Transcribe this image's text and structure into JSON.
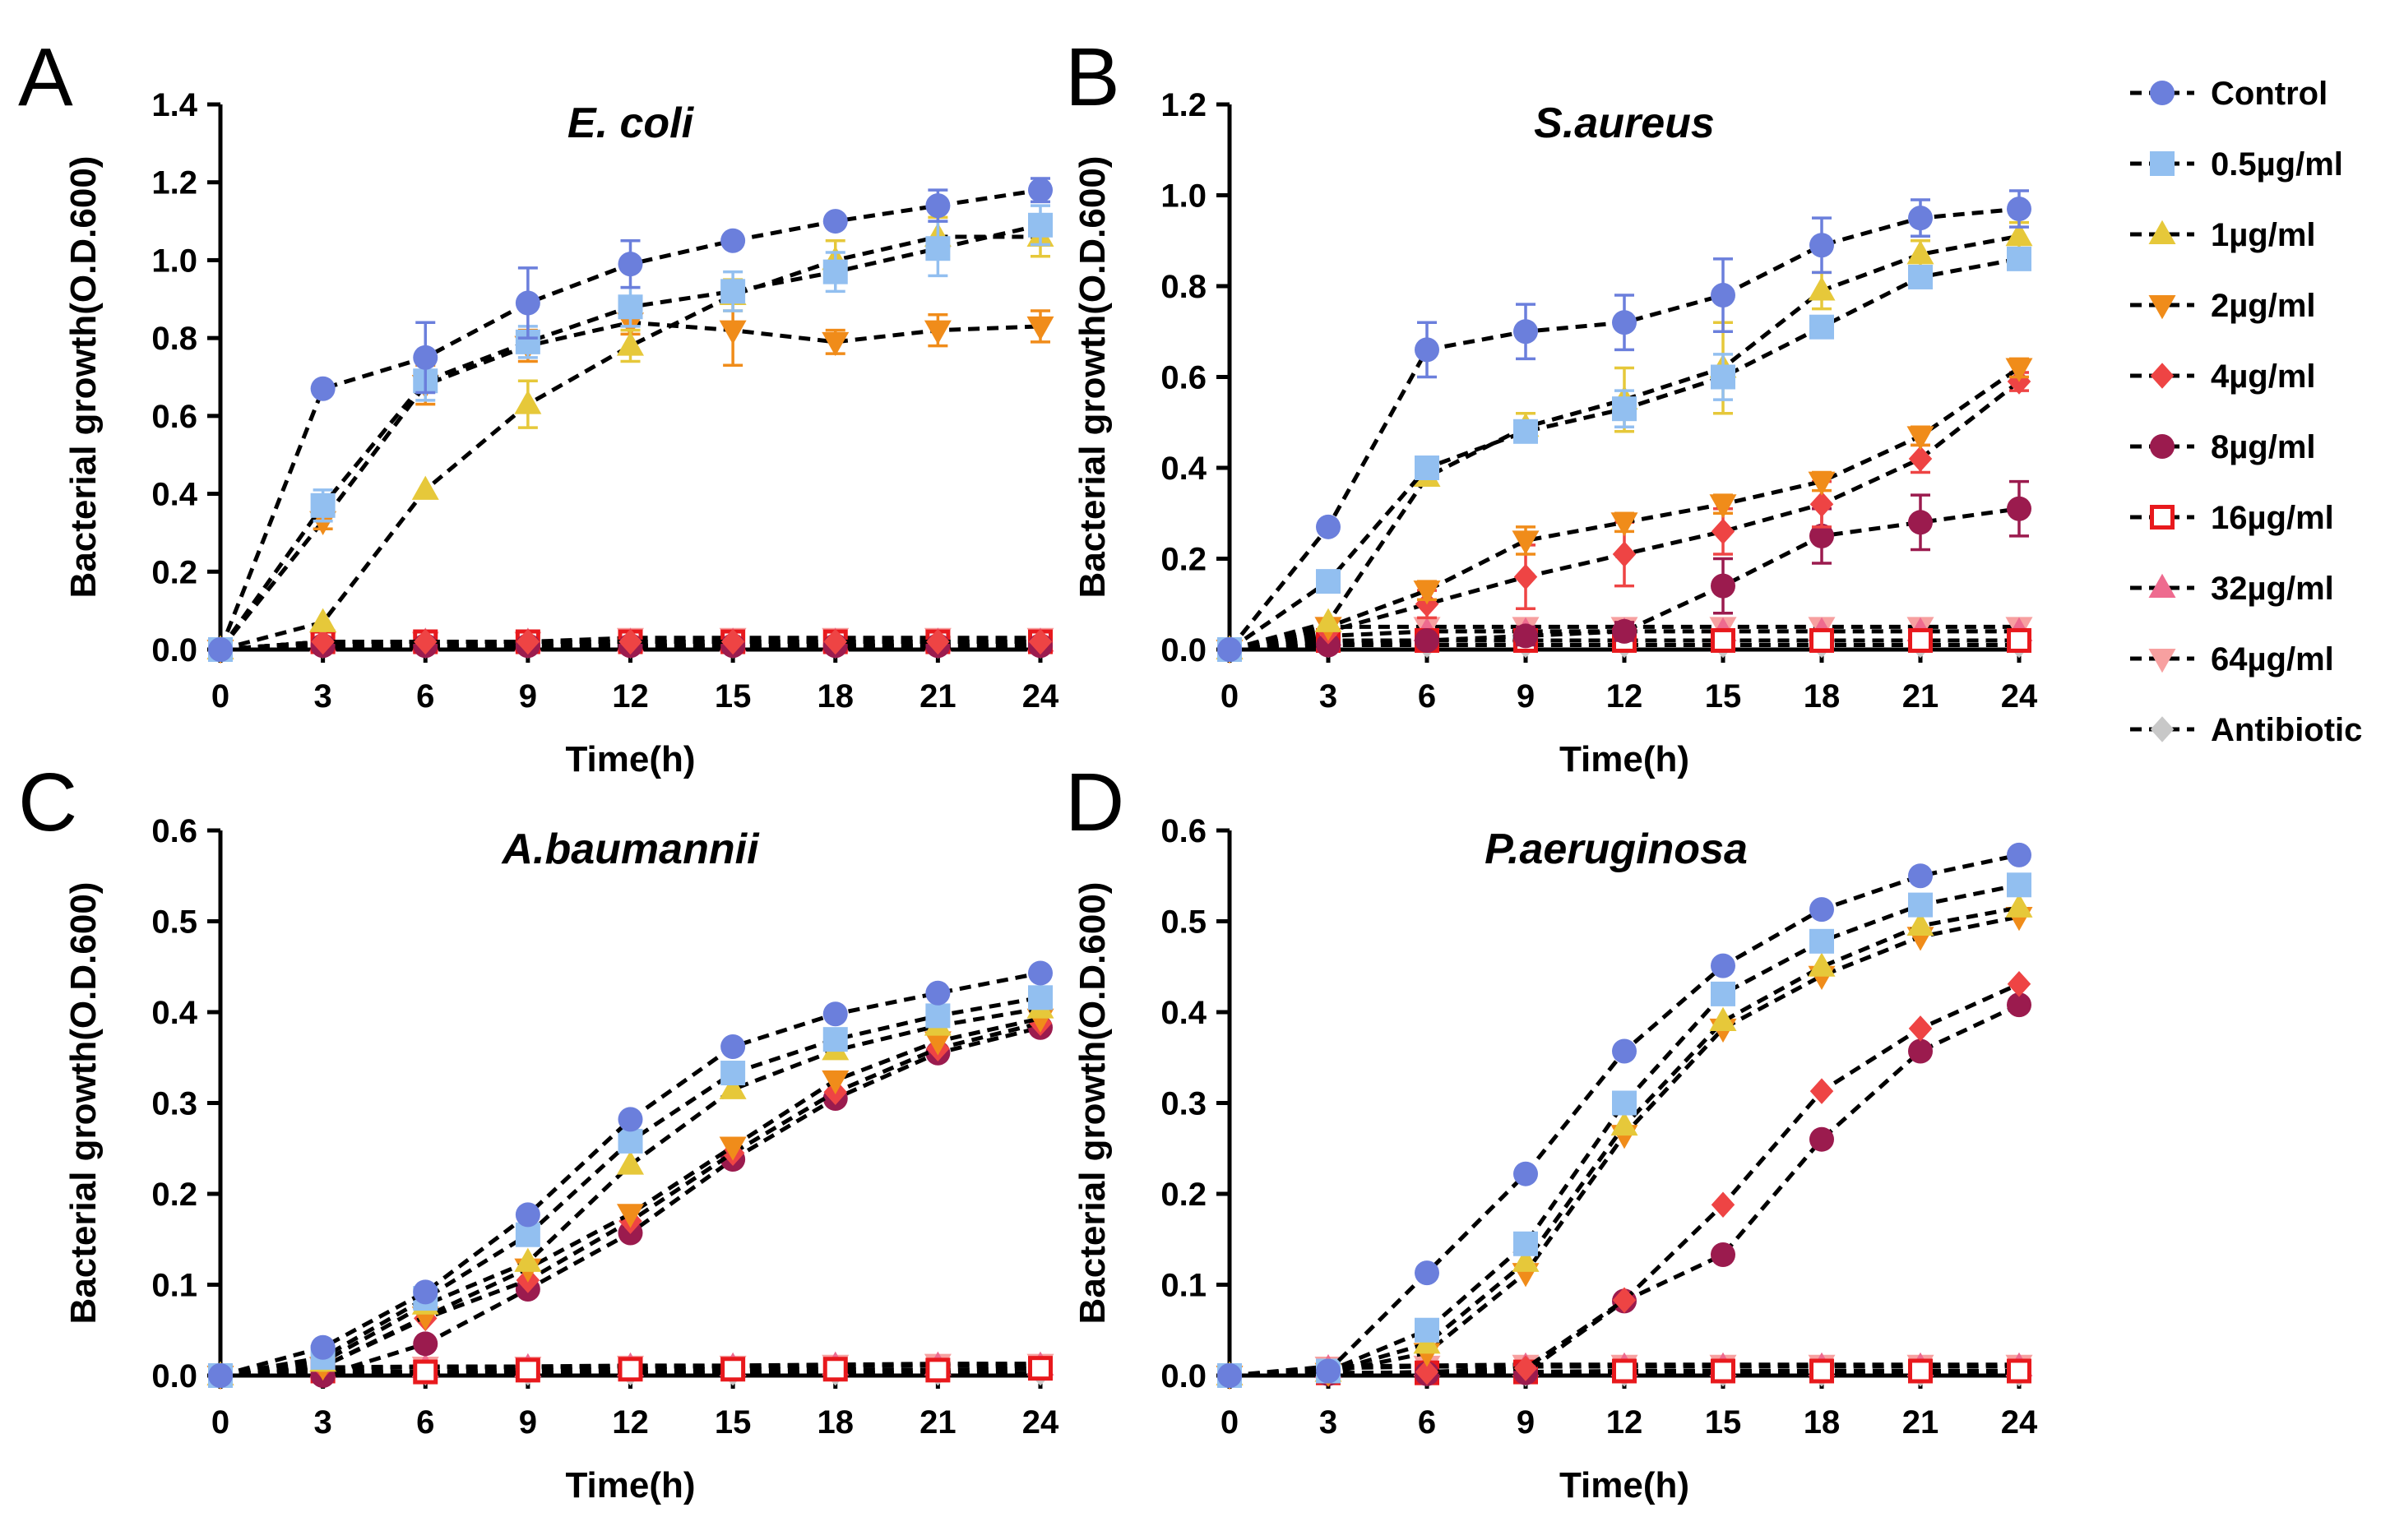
{
  "legend": {
    "entries": [
      {
        "name": "Control",
        "color": "#6b7fdc",
        "marker": "circle"
      },
      {
        "name": "0.5µg/ml",
        "color": "#92bff0",
        "marker": "square"
      },
      {
        "name": "1µg/ml",
        "color": "#e6c83a",
        "marker": "triangle"
      },
      {
        "name": "2µg/ml",
        "color": "#f08c1a",
        "marker": "triangle-down"
      },
      {
        "name": "4µg/ml",
        "color": "#ee4444",
        "marker": "diamond"
      },
      {
        "name": "8µg/ml",
        "color": "#9b1b4e",
        "marker": "circle"
      },
      {
        "name": "16µg/ml",
        "color": "#e8191d",
        "marker": "square-open"
      },
      {
        "name": "32µg/ml",
        "color": "#ee6b8f",
        "marker": "triangle"
      },
      {
        "name": "64µg/ml",
        "color": "#f7a0a0",
        "marker": "triangle-down"
      },
      {
        "name": "Antibiotic",
        "color": "#c8c8c8",
        "marker": "diamond"
      }
    ]
  },
  "chart_data": [
    {
      "panel": "A",
      "type": "line",
      "title": "E. coli",
      "xlabel": "Time(h)",
      "ylabel": "Bacterial growth(O.D.600)",
      "ylim": [
        0,
        1.4
      ],
      "yticks": [
        "0.0",
        "0.2",
        "0.4",
        "0.6",
        "0.8",
        "1.0",
        "1.2",
        "1.4"
      ],
      "x": [
        0,
        3,
        6,
        9,
        12,
        15,
        18,
        21,
        24
      ],
      "series": [
        {
          "name": "Control",
          "values": [
            0,
            0.67,
            0.75,
            0.89,
            0.99,
            1.05,
            1.1,
            1.14,
            1.18
          ],
          "err": [
            0,
            0,
            0.09,
            0.09,
            0.06,
            0,
            0,
            0.04,
            0.03
          ]
        },
        {
          "name": "0.5µg/ml",
          "values": [
            0,
            0.37,
            0.69,
            0.79,
            0.88,
            0.92,
            0.97,
            1.03,
            1.09
          ],
          "err": [
            0,
            0.04,
            0.05,
            0.04,
            0.05,
            0.05,
            0.05,
            0.07,
            0.05
          ]
        },
        {
          "name": "1µg/ml",
          "values": [
            0,
            0.07,
            0.41,
            0.63,
            0.78,
            0.91,
            1.0,
            1.06,
            1.06
          ],
          "err": [
            0,
            0,
            0,
            0.06,
            0.04,
            0.04,
            0.05,
            0.05,
            0.05
          ]
        },
        {
          "name": "2µg/ml",
          "values": [
            0,
            0.33,
            0.68,
            0.78,
            0.84,
            0.82,
            0.79,
            0.82,
            0.83
          ],
          "err": [
            0,
            0.02,
            0.05,
            0.04,
            0.03,
            0.09,
            0.03,
            0.04,
            0.04
          ]
        },
        {
          "name": "4µg/ml",
          "values": [
            0,
            0.02,
            0.02,
            0.02,
            0.02,
            0.02,
            0.02,
            0.02,
            0.02
          ]
        },
        {
          "name": "8µg/ml",
          "values": [
            0,
            0.01,
            0.01,
            0.01,
            0.01,
            0.01,
            0.01,
            0.01,
            0.01
          ]
        },
        {
          "name": "16µg/ml",
          "values": [
            0,
            0.02,
            0.02,
            0.02,
            0.02,
            0.02,
            0.02,
            0.02,
            0.02
          ]
        },
        {
          "name": "32µg/ml",
          "values": [
            0,
            0.02,
            0.02,
            0.02,
            0.02,
            0.02,
            0.02,
            0.02,
            0.02
          ]
        },
        {
          "name": "64µg/ml",
          "values": [
            0,
            0.02,
            0.02,
            0.02,
            0.03,
            0.03,
            0.03,
            0.03,
            0.03
          ]
        },
        {
          "name": "Antibiotic",
          "values": [
            0,
            0.01,
            0.01,
            0.01,
            0.01,
            0.01,
            0.01,
            0.01,
            0.01
          ]
        }
      ]
    },
    {
      "panel": "B",
      "type": "line",
      "title": "S.aureus",
      "xlabel": "Time(h)",
      "ylabel": "Bacterial growth(O.D.600)",
      "ylim": [
        0,
        1.2
      ],
      "yticks": [
        "0.0",
        "0.2",
        "0.4",
        "0.6",
        "0.8",
        "1.0",
        "1.2"
      ],
      "x": [
        0,
        3,
        6,
        9,
        12,
        15,
        18,
        21,
        24
      ],
      "series": [
        {
          "name": "Control",
          "values": [
            0,
            0.27,
            0.66,
            0.7,
            0.72,
            0.78,
            0.89,
            0.95,
            0.97
          ],
          "err": [
            0,
            0,
            0.06,
            0.06,
            0.06,
            0.08,
            0.06,
            0.04,
            0.04
          ]
        },
        {
          "name": "0.5µg/ml",
          "values": [
            0,
            0.15,
            0.4,
            0.48,
            0.53,
            0.6,
            0.71,
            0.82,
            0.86
          ],
          "err": [
            0,
            0,
            0,
            0.02,
            0.04,
            0.05,
            0.02,
            0.02,
            0.02
          ]
        },
        {
          "name": "1µg/ml",
          "values": [
            0,
            0.06,
            0.38,
            0.49,
            0.55,
            0.62,
            0.79,
            0.87,
            0.91
          ],
          "err": [
            0,
            0,
            0,
            0.03,
            0.07,
            0.1,
            0.04,
            0.03,
            0.03
          ]
        },
        {
          "name": "2µg/ml",
          "values": [
            0,
            0.05,
            0.13,
            0.24,
            0.28,
            0.32,
            0.37,
            0.47,
            0.62
          ],
          "err": [
            0,
            0,
            0.02,
            0.03,
            0.02,
            0.02,
            0.02,
            0.02,
            0.02
          ]
        },
        {
          "name": "4µg/ml",
          "values": [
            0,
            0.04,
            0.1,
            0.16,
            0.21,
            0.26,
            0.32,
            0.42,
            0.59
          ],
          "err": [
            0,
            0,
            0.03,
            0.07,
            0.07,
            0.05,
            0.05,
            0.03,
            0.02
          ]
        },
        {
          "name": "8µg/ml",
          "values": [
            0,
            0.01,
            0.02,
            0.03,
            0.04,
            0.14,
            0.25,
            0.28,
            0.31
          ],
          "err": [
            0,
            0,
            0,
            0.02,
            0.02,
            0.06,
            0.06,
            0.06,
            0.06
          ]
        },
        {
          "name": "16µg/ml",
          "values": [
            0,
            0.02,
            0.02,
            0.02,
            0.02,
            0.02,
            0.02,
            0.02,
            0.02
          ]
        },
        {
          "name": "32µg/ml",
          "values": [
            0,
            0.03,
            0.04,
            0.04,
            0.04,
            0.04,
            0.04,
            0.04,
            0.04
          ]
        },
        {
          "name": "64µg/ml",
          "values": [
            0,
            0.05,
            0.05,
            0.05,
            0.05,
            0.05,
            0.05,
            0.05,
            0.05
          ]
        },
        {
          "name": "Antibiotic",
          "values": [
            0,
            0.01,
            0.01,
            0.01,
            0.01,
            0.01,
            0.01,
            0.01,
            0.01
          ]
        }
      ]
    },
    {
      "panel": "C",
      "type": "line",
      "title": "A.baumannii",
      "xlabel": "Time(h)",
      "ylabel": "Bacterial growth(O.D.600)",
      "ylim": [
        0,
        0.6
      ],
      "yticks": [
        "0.0",
        "0.1",
        "0.2",
        "0.3",
        "0.4",
        "0.5",
        "0.6"
      ],
      "x": [
        0,
        3,
        6,
        9,
        12,
        15,
        18,
        21,
        24
      ],
      "series": [
        {
          "name": "Control",
          "values": [
            0,
            0.031,
            0.092,
            0.177,
            0.282,
            0.362,
            0.398,
            0.421,
            0.443
          ]
        },
        {
          "name": "0.5µg/ml",
          "values": [
            0,
            0.02,
            0.085,
            0.155,
            0.258,
            0.333,
            0.37,
            0.396,
            0.416
          ]
        },
        {
          "name": "1µg/ml",
          "values": [
            0,
            0.015,
            0.078,
            0.125,
            0.232,
            0.315,
            0.358,
            0.385,
            0.404
          ]
        },
        {
          "name": "2µg/ml",
          "values": [
            0,
            0.01,
            0.065,
            0.118,
            0.178,
            0.252,
            0.325,
            0.368,
            0.393
          ]
        },
        {
          "name": "4µg/ml",
          "values": [
            0,
            0.01,
            0.063,
            0.105,
            0.17,
            0.245,
            0.312,
            0.36,
            0.388
          ]
        },
        {
          "name": "8µg/ml",
          "values": [
            0,
            0.0,
            0.035,
            0.095,
            0.157,
            0.238,
            0.305,
            0.355,
            0.383
          ]
        },
        {
          "name": "16µg/ml",
          "values": [
            0,
            0.005,
            0.004,
            0.006,
            0.007,
            0.007,
            0.007,
            0.006,
            0.008
          ]
        },
        {
          "name": "32µg/ml",
          "values": [
            0,
            0.008,
            0.009,
            0.009,
            0.01,
            0.01,
            0.011,
            0.011,
            0.011
          ]
        },
        {
          "name": "64µg/ml",
          "values": [
            0,
            0.009,
            0.01,
            0.01,
            0.011,
            0.011,
            0.012,
            0.013,
            0.013
          ]
        },
        {
          "name": "Antibiotic",
          "values": [
            0,
            0.003,
            0.003,
            0.003,
            0.003,
            0.003,
            0.003,
            0.003,
            0.003
          ]
        }
      ]
    },
    {
      "panel": "D",
      "type": "line",
      "title": "P.aeruginosa",
      "xlabel": "Time(h)",
      "ylabel": "Bacterial growth(O.D.600)",
      "ylim": [
        0,
        0.6
      ],
      "yticks": [
        "0.0",
        "0.1",
        "0.2",
        "0.3",
        "0.4",
        "0.5",
        "0.6"
      ],
      "x": [
        0,
        3,
        6,
        9,
        12,
        15,
        18,
        21,
        24
      ],
      "series": [
        {
          "name": "Control",
          "values": [
            0,
            0.005,
            0.113,
            0.222,
            0.357,
            0.451,
            0.513,
            0.55,
            0.573
          ]
        },
        {
          "name": "0.5µg/ml",
          "values": [
            0,
            0.005,
            0.05,
            0.145,
            0.3,
            0.42,
            0.478,
            0.518,
            0.54
          ]
        },
        {
          "name": "1µg/ml",
          "values": [
            0,
            0.004,
            0.035,
            0.125,
            0.275,
            0.39,
            0.45,
            0.495,
            0.515
          ]
        },
        {
          "name": "2µg/ml",
          "values": [
            0,
            0.003,
            0.025,
            0.113,
            0.265,
            0.382,
            0.44,
            0.483,
            0.505
          ]
        },
        {
          "name": "4µg/ml",
          "values": [
            0,
            0.002,
            0.004,
            0.008,
            0.083,
            0.188,
            0.313,
            0.382,
            0.431
          ]
        },
        {
          "name": "8µg/ml",
          "values": [
            0,
            0.002,
            0.002,
            0.003,
            0.082,
            0.133,
            0.26,
            0.357,
            0.408
          ]
        },
        {
          "name": "16µg/ml",
          "values": [
            0,
            0.003,
            0.003,
            0.004,
            0.005,
            0.005,
            0.005,
            0.005,
            0.005
          ]
        },
        {
          "name": "32µg/ml",
          "values": [
            0,
            0.008,
            0.01,
            0.01,
            0.01,
            0.01,
            0.01,
            0.01,
            0.01
          ]
        },
        {
          "name": "64µg/ml",
          "values": [
            0,
            0.01,
            0.011,
            0.012,
            0.012,
            0.012,
            0.012,
            0.012,
            0.012
          ]
        },
        {
          "name": "Antibiotic",
          "values": [
            0,
            0.002,
            0.002,
            0.002,
            0.002,
            0.002,
            0.002,
            0.002,
            0.002
          ]
        }
      ]
    }
  ]
}
